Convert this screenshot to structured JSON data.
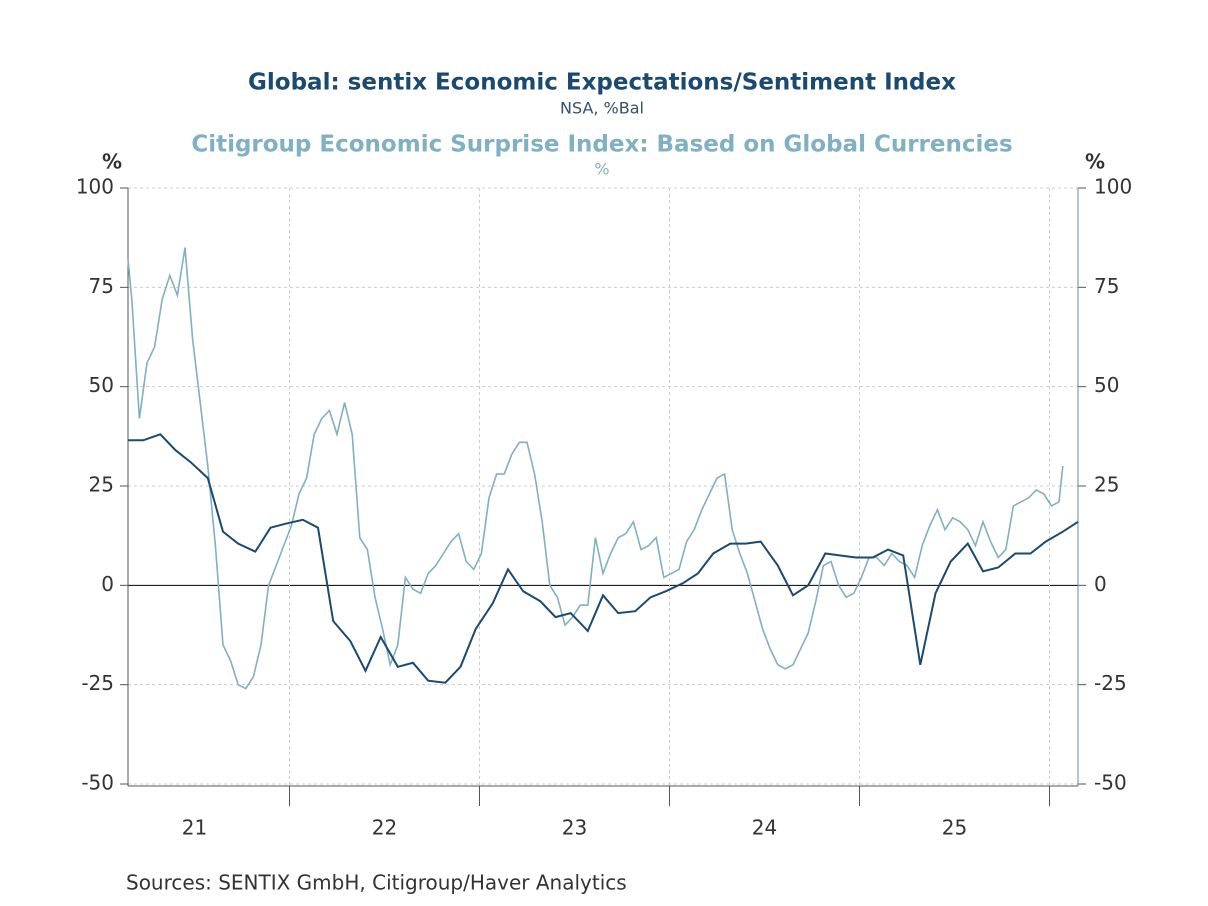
{
  "chart_data": {
    "type": "line",
    "series": [
      {
        "name": "Global: sentix Economic Expectations/Sentiment Index",
        "units": "NSA, %Bal",
        "color": "#1a4a72",
        "x": [
          21.15,
          21.23,
          21.32,
          21.4,
          21.48,
          21.57,
          21.65,
          21.73,
          21.82,
          21.9,
          21.98,
          22.07,
          22.15,
          22.23,
          22.32,
          22.4,
          22.48,
          22.57,
          22.65,
          22.73,
          22.82,
          22.9,
          22.98,
          23.07,
          23.15,
          23.23,
          23.32,
          23.4,
          23.48,
          23.57,
          23.65,
          23.73,
          23.82,
          23.9,
          23.98,
          24.07,
          24.15,
          24.23,
          24.32,
          24.4,
          24.48,
          24.57,
          24.65,
          24.73,
          24.82,
          24.9,
          24.98,
          25.07,
          25.15,
          25.23,
          25.32,
          25.4,
          25.48,
          25.57,
          25.65,
          25.73,
          25.82,
          25.9,
          25.98,
          26.07,
          26.15
        ],
        "values": [
          36.5,
          36.5,
          38,
          34,
          31,
          27,
          13.5,
          10.5,
          8.5,
          14.5,
          15.5,
          16.5,
          14.5,
          -9,
          -14,
          -21.5,
          -13,
          -20.5,
          -19.5,
          -24,
          -24.5,
          -20.5,
          -11,
          -4.5,
          4,
          -1.5,
          -4,
          -8,
          -7,
          -11.5,
          -2.5,
          -7,
          -6.5,
          -3,
          -1.5,
          0.5,
          3,
          8,
          10.5,
          10.5,
          11,
          5,
          -2.5,
          0,
          8,
          7.5,
          7,
          7,
          9,
          7.5,
          -20,
          -2,
          6,
          10.5,
          3.5,
          4.5,
          8,
          8,
          11,
          13.5,
          16
        ]
      },
      {
        "name": "Citigroup Economic Surprise Index: Based on Global Currencies",
        "units": "%",
        "color": "#7fb0c4",
        "axis": "y2",
        "x": [
          21.15,
          21.17,
          21.21,
          21.25,
          21.29,
          21.33,
          21.37,
          21.41,
          21.45,
          21.49,
          21.53,
          21.57,
          21.61,
          21.65,
          21.69,
          21.73,
          21.77,
          21.81,
          21.85,
          21.89,
          21.93,
          21.97,
          22.01,
          22.05,
          22.09,
          22.13,
          22.17,
          22.21,
          22.25,
          22.29,
          22.33,
          22.37,
          22.41,
          22.45,
          22.49,
          22.53,
          22.57,
          22.61,
          22.65,
          22.69,
          22.73,
          22.77,
          22.81,
          22.85,
          22.89,
          22.93,
          22.97,
          23.01,
          23.05,
          23.09,
          23.13,
          23.17,
          23.21,
          23.25,
          23.29,
          23.33,
          23.37,
          23.41,
          23.45,
          23.49,
          23.53,
          23.57,
          23.61,
          23.65,
          23.69,
          23.73,
          23.77,
          23.81,
          23.85,
          23.89,
          23.93,
          23.97,
          24.01,
          24.05,
          24.09,
          24.13,
          24.17,
          24.21,
          24.25,
          24.29,
          24.33,
          24.37,
          24.41,
          24.45,
          24.49,
          24.53,
          24.57,
          24.61,
          24.65,
          24.69,
          24.73,
          24.77,
          24.81,
          24.85,
          24.89,
          24.93,
          24.97,
          25.01,
          25.05,
          25.09,
          25.13,
          25.17,
          25.21,
          25.25,
          25.29,
          25.33,
          25.37,
          25.41,
          25.45,
          25.49,
          25.53,
          25.57,
          25.61,
          25.65,
          25.69,
          25.73,
          25.77,
          25.81,
          25.85,
          25.89,
          25.93,
          25.97,
          26.01,
          26.05,
          26.07
        ],
        "values": [
          82,
          72,
          42,
          56,
          60,
          72,
          78,
          73,
          85,
          62,
          46,
          30,
          10,
          -15,
          -19,
          -25,
          -26,
          -23,
          -15,
          0,
          5,
          10,
          15,
          23,
          27,
          38,
          42,
          44,
          38,
          46,
          38,
          12,
          9,
          -3,
          -11,
          -20,
          -15,
          2,
          -1,
          -2,
          3,
          5,
          8,
          11,
          13,
          6,
          4,
          8,
          22,
          28,
          28,
          33,
          36,
          36,
          28,
          16,
          0,
          -3,
          -10,
          -8,
          -5,
          -5,
          12,
          3,
          8,
          12,
          13,
          16,
          9,
          10,
          12,
          2,
          3,
          4,
          11,
          14,
          19,
          23,
          27,
          28,
          14,
          8,
          3,
          -4,
          -11,
          -16,
          -20,
          -21,
          -20,
          -16,
          -12,
          -4,
          5,
          6,
          0,
          -3,
          -2,
          2,
          7,
          7,
          5,
          8,
          6,
          5,
          2,
          10,
          15,
          19,
          14,
          17,
          16,
          14,
          10,
          16,
          11,
          7,
          9,
          20,
          21,
          22,
          24,
          23,
          20,
          21,
          30
        ]
      }
    ],
    "xlim": [
      21.15,
      26.15
    ],
    "xticks": [
      {
        "value": 21.5,
        "label": "21"
      },
      {
        "value": 22.5,
        "label": "22"
      },
      {
        "value": 23.5,
        "label": "23"
      },
      {
        "value": 24.5,
        "label": "24"
      },
      {
        "value": 25.5,
        "label": "25"
      }
    ],
    "xminorticks": [
      22,
      23,
      24,
      25,
      26
    ],
    "ylabel": "%",
    "ylim": [
      -50,
      100
    ],
    "yticks": [
      -50,
      -25,
      0,
      25,
      50,
      75,
      100
    ],
    "y2label": "%",
    "y2lim": [
      -50,
      100
    ],
    "y2ticks": [
      -50,
      -25,
      0,
      25,
      50,
      75,
      100
    ],
    "grid": true,
    "source": "Sources:  SENTIX GmbH, Citigroup/Haver Analytics"
  }
}
